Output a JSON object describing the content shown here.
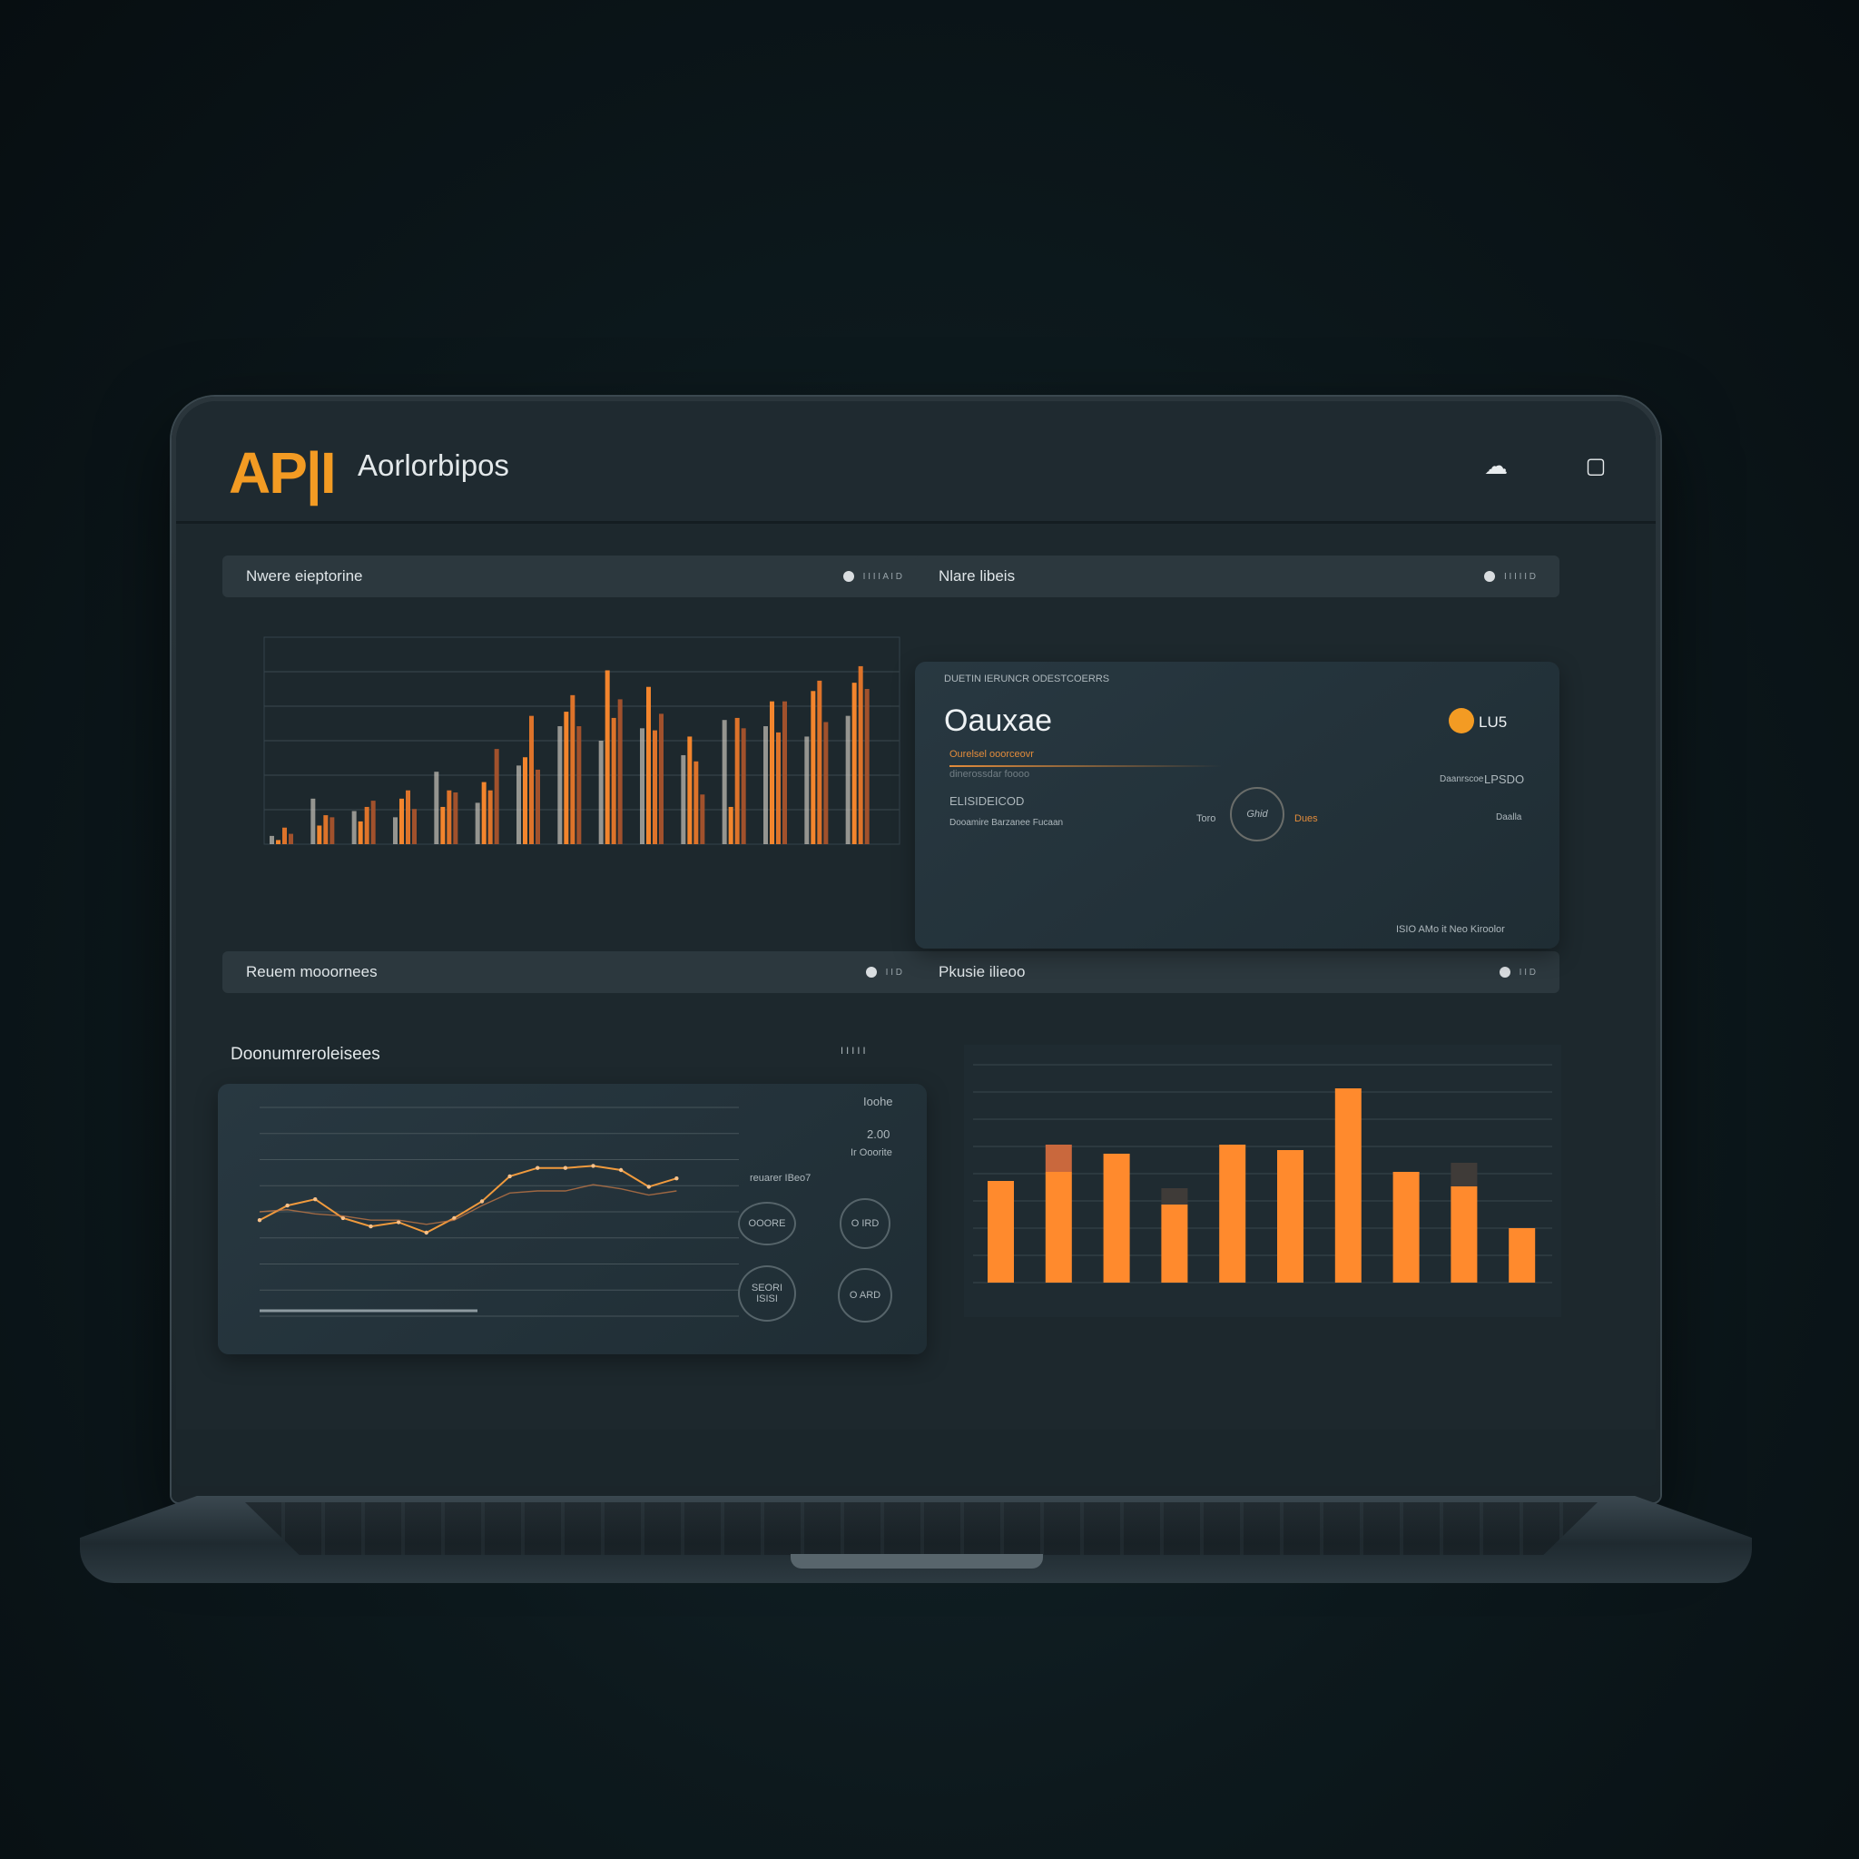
{
  "app": {
    "logo": "AP|I",
    "title": "Aorlorbipos",
    "icons": [
      "cloud-icon",
      "square-icon"
    ]
  },
  "panels": {
    "top_left": {
      "header": "Nwere eieptorine",
      "controls": "I I I I A I D"
    },
    "top_right": {
      "header": "Nlare libeis",
      "controls": "I I I I I D"
    },
    "bottom_left": {
      "header": "Reuem mooornees",
      "controls": "I I D"
    },
    "bottom_right": {
      "header": "Pkusie ilieoo",
      "controls": "I I D"
    }
  },
  "summary_card": {
    "kicker": "DUETIN IERUNCR ODESTCOERRS",
    "value": "Oauxae",
    "badge": "LU5",
    "subline_orange": "Ourelsel ooorceovr",
    "subline_muted": "dinerossdar foooo",
    "left_label": "ELISIDEICOD",
    "left_meta": "Dooamire  Barzanee  Fucaan",
    "mid_left": "Toro",
    "mid_right": "Dues",
    "stamp": "Ghid",
    "right_top_label": "Daanrscoe",
    "right_top_value": "LPSDO",
    "right_mid": "Daalla",
    "footer": "ISIO  AMo  it Neo  Kiroolor"
  },
  "line_panel": {
    "title": "Doonumreroleisees",
    "controls": "I I I I I",
    "stats": [
      "Ioohe",
      "2.00",
      "Ir Ooorite"
    ],
    "legend_text": "reuarer IBeo7",
    "buttons": [
      "OOORE",
      "O IRD",
      "SEORI ISISI",
      "O ARD"
    ]
  },
  "chart_data": [
    {
      "type": "bar",
      "title": "",
      "categories": [
        "",
        "",
        "",
        "",
        "",
        "",
        "",
        "",
        "",
        "",
        "",
        "",
        "",
        "",
        ""
      ],
      "series": [
        {
          "values": [
            4,
            22,
            16,
            13,
            35,
            20,
            38,
            57,
            50,
            56,
            43,
            60,
            57,
            52,
            62
          ]
        },
        {
          "values": [
            2,
            9,
            11,
            22,
            18,
            30,
            42,
            64,
            84,
            76,
            52,
            18,
            69,
            74,
            78
          ]
        },
        {
          "values": [
            8,
            14,
            18,
            26,
            26,
            26,
            62,
            72,
            61,
            55,
            40,
            61,
            54,
            79,
            86
          ]
        },
        {
          "values": [
            5,
            13,
            21,
            17,
            25,
            46,
            36,
            57,
            70,
            63,
            24,
            56,
            69,
            59,
            75
          ]
        }
      ],
      "ylim": [
        0,
        100
      ]
    },
    {
      "type": "line",
      "title": "",
      "series": [
        {
          "values": [
            46,
            53,
            56,
            47,
            43,
            45,
            40,
            47,
            55,
            67,
            71,
            71,
            72,
            70,
            62,
            66
          ]
        },
        {
          "values": [
            50,
            51,
            49,
            48,
            46,
            46,
            44,
            46,
            53,
            59,
            60,
            60,
            63,
            61,
            58,
            60
          ]
        }
      ],
      "ylim": [
        0,
        100
      ]
    },
    {
      "type": "bar",
      "title": "",
      "categories": [
        "",
        "",
        "",
        "",
        "",
        "",
        "",
        "",
        "",
        ""
      ],
      "series": [
        {
          "values": [
            56,
            61,
            71,
            43,
            76,
            73,
            107,
            61,
            53,
            30
          ]
        },
        {
          "values": [
            0,
            15,
            0,
            9,
            0,
            0,
            0,
            0,
            13,
            0
          ]
        }
      ],
      "ylim": [
        0,
        120
      ],
      "colors": [
        "#ff8a2d",
        "#c9683d"
      ]
    }
  ]
}
